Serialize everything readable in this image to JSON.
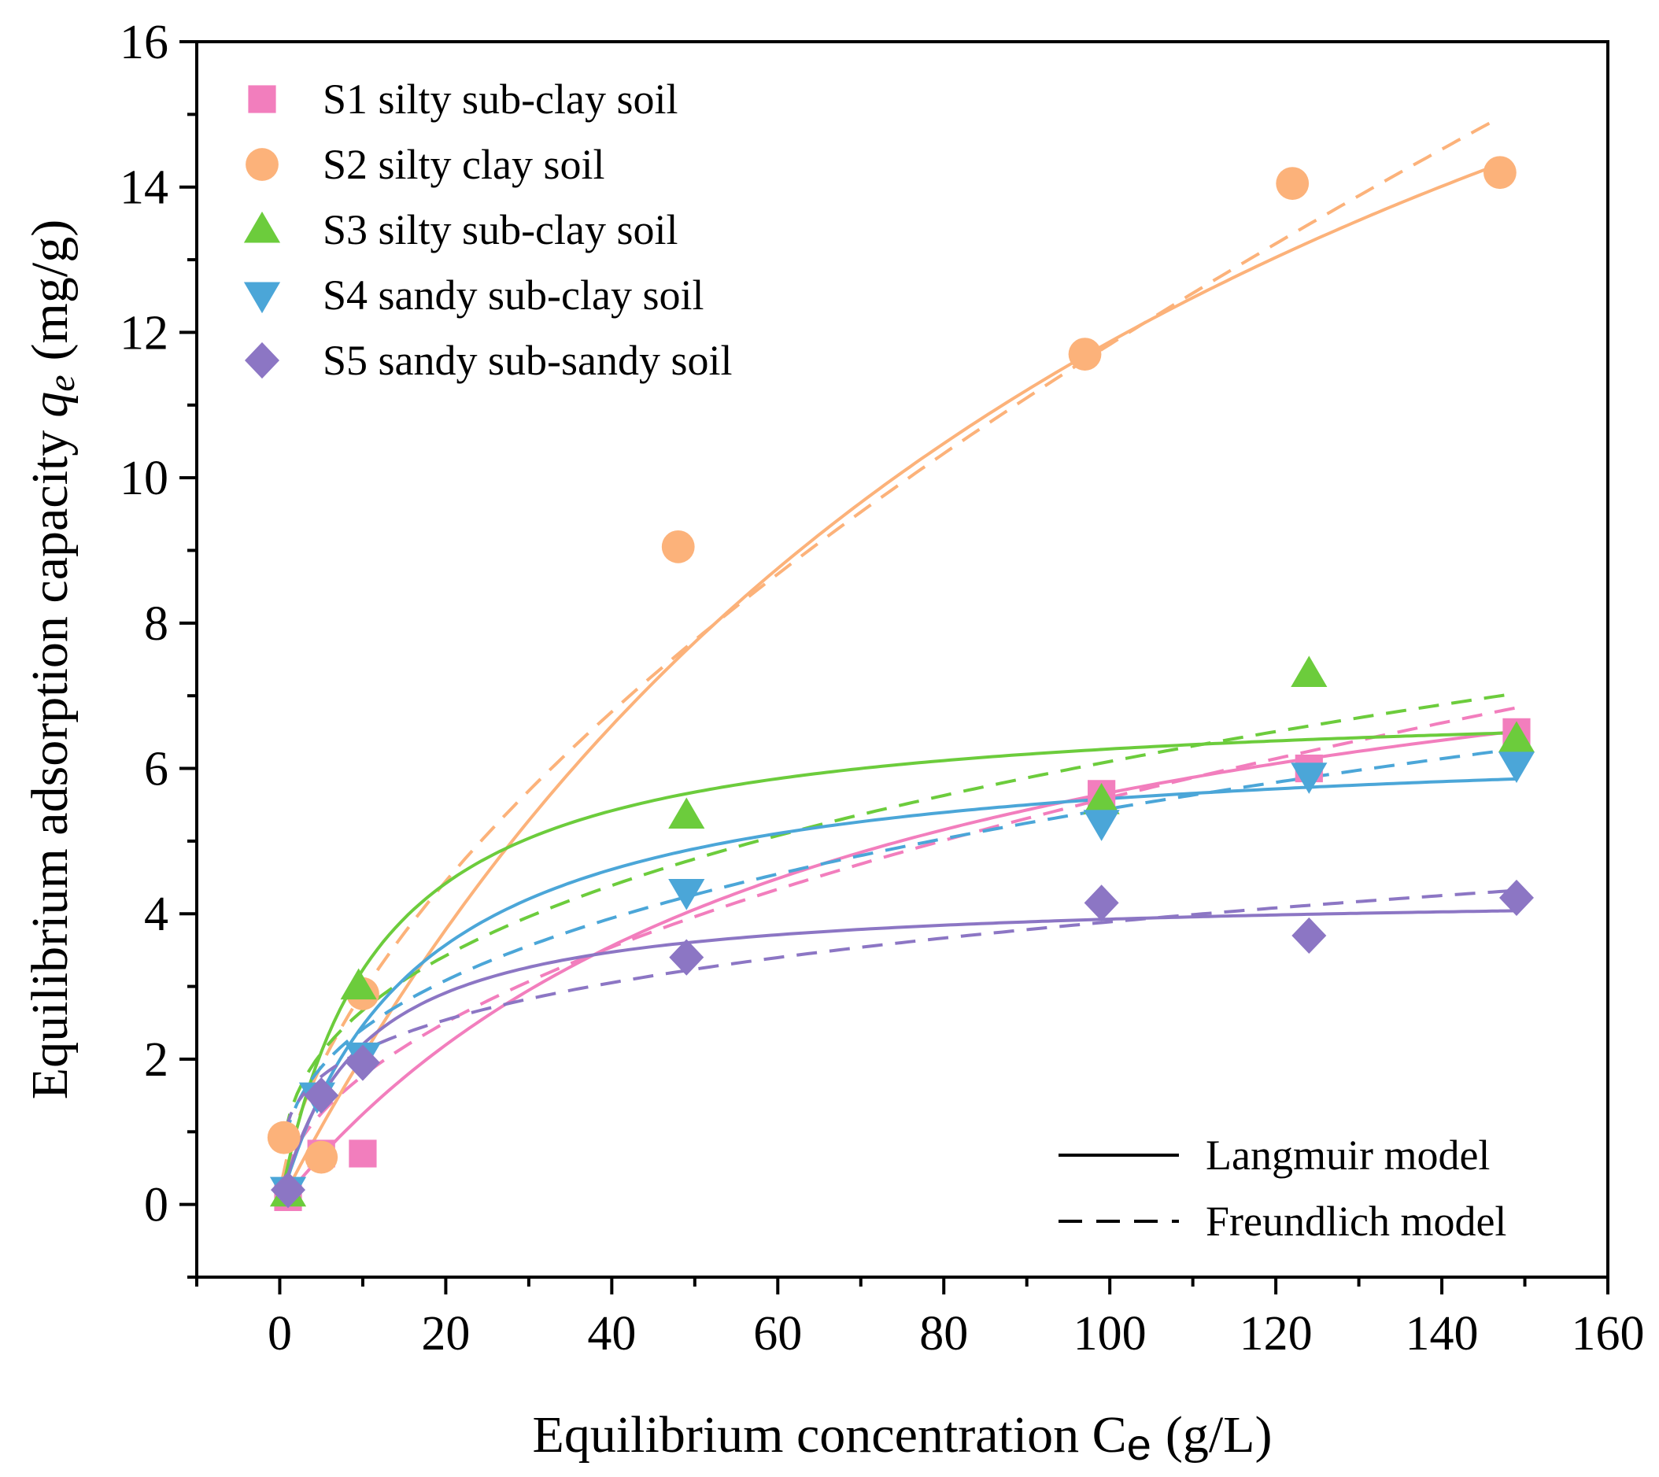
{
  "chart_data": {
    "type": "scatter",
    "title": "",
    "xlabel": "Equilibrium concentration C",
    "xlabel_sub": "e",
    "xlabel_unit": "(g/L)",
    "ylabel": "Equilibrium adsorption capacity",
    "ylabel_var": "q",
    "ylabel_sub": "e",
    "ylabel_unit": "(mg/g)",
    "xlim": [
      -10,
      160
    ],
    "ylim": [
      -1,
      16
    ],
    "xticks": [
      0,
      20,
      40,
      60,
      80,
      100,
      120,
      140,
      160
    ],
    "yticks": [
      0,
      2,
      4,
      6,
      8,
      10,
      12,
      14,
      16
    ],
    "xtick_labels": [
      "0",
      "20",
      "40",
      "60",
      "80",
      "100",
      "120",
      "140",
      "160"
    ],
    "ytick_labels": [
      "0",
      "2",
      "4",
      "6",
      "8",
      "10",
      "12",
      "14",
      "16"
    ],
    "grid": false,
    "legend_position": "top-left",
    "model_legend_position": "bottom-right",
    "model_legend": [
      {
        "label": "Langmuir model",
        "style": "solid"
      },
      {
        "label": "Freundlich model",
        "style": "dashed"
      }
    ],
    "series": [
      {
        "name": "S1 silty sub-clay soil",
        "marker": "square",
        "color": "#f27ebd",
        "x": [
          1,
          5,
          10,
          99,
          124,
          149
        ],
        "y": [
          0.1,
          0.7,
          0.7,
          5.65,
          6.0,
          6.5
        ],
        "langmuir": {
          "qmax": 9.37,
          "K": 0.0153
        },
        "freundlich": {
          "K": 0.56,
          "n": 2.0
        }
      },
      {
        "name": "S2 silty clay soil",
        "marker": "circle",
        "color": "#fcb27a",
        "x": [
          0.5,
          5,
          10,
          48,
          97,
          122,
          147
        ],
        "y": [
          0.92,
          0.65,
          2.9,
          9.05,
          11.7,
          14.05,
          14.2
        ],
        "langmuir": {
          "qmax": 25.5,
          "K": 0.00871
        },
        "freundlich": {
          "K": 0.72,
          "n": 1.645
        }
      },
      {
        "name": "S3 silty sub-clay soil",
        "marker": "triangle-up",
        "color": "#6ccc3c",
        "x": [
          1,
          9.5,
          49,
          99,
          124,
          149
        ],
        "y": [
          0.15,
          3.0,
          5.35,
          5.55,
          7.3,
          6.4
        ],
        "langmuir": {
          "qmax": 7.0,
          "K": 0.0856
        },
        "freundlich": {
          "K": 1.17,
          "n": 2.79
        }
      },
      {
        "name": "S4 sandy sub-clay soil",
        "marker": "triangle-down",
        "color": "#4ba6d8",
        "x": [
          1,
          4.5,
          10,
          49,
          99,
          124,
          149
        ],
        "y": [
          0.2,
          1.5,
          2.05,
          4.3,
          5.25,
          5.9,
          6.05
        ],
        "langmuir": {
          "qmax": 6.5,
          "K": 0.061
        },
        "freundlich": {
          "K": 1.07,
          "n": 2.83
        }
      },
      {
        "name": "S5 sandy sub-sandy soil",
        "marker": "diamond",
        "color": "#8c76c4",
        "x": [
          1,
          5,
          10,
          49,
          99,
          124,
          149
        ],
        "y": [
          0.2,
          1.5,
          1.95,
          3.4,
          4.15,
          3.7,
          4.22
        ],
        "langmuir": {
          "qmax": 4.3,
          "K": 0.105
        },
        "freundlich": {
          "K": 1.15,
          "n": 3.78
        }
      }
    ]
  }
}
